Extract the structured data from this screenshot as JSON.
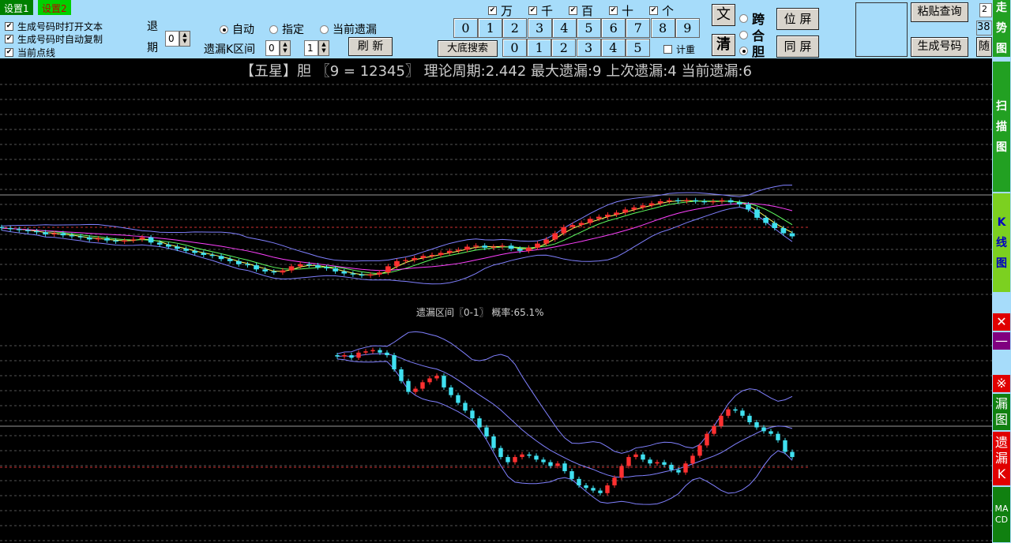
{
  "tabs": [
    {
      "label": "设置1",
      "bg": "#008000",
      "color": "#fff"
    },
    {
      "label": "设置2",
      "bg": "#00d000",
      "color": "#c00000"
    }
  ],
  "options": [
    "生成号码时打开文本",
    "生成号码时自动复制",
    "当前点线"
  ],
  "tuiqi": {
    "label1": "退",
    "label2": "期",
    "value": "0"
  },
  "modes": [
    {
      "label": "自动",
      "selected": true
    },
    {
      "label": "指定",
      "selected": false
    },
    {
      "label": "当前遗漏",
      "selected": false
    }
  ],
  "interval": {
    "label": "遗漏K区间",
    "from": "0",
    "to": "1"
  },
  "refresh_label": "刷 新",
  "positions": [
    "万",
    "千",
    "百",
    "十",
    "个"
  ],
  "digits": [
    "0",
    "1",
    "2",
    "3",
    "4",
    "5",
    "6",
    "7",
    "8",
    "9"
  ],
  "search_label": "大底搜索",
  "sums": [
    "0",
    "1",
    "2",
    "3",
    "4",
    "5"
  ],
  "jizhong_label": "计重",
  "wen_label": "文",
  "qing_label": "清",
  "kinds": [
    {
      "label": "跨",
      "selected": false
    },
    {
      "label": "合",
      "selected": false
    },
    {
      "label": "胆",
      "selected": true
    }
  ],
  "weiping_label": "位 屏",
  "tongping_label": "同 屏",
  "paste_label": "粘贴查询",
  "generate_label": "生成号码",
  "random_label": "随",
  "small_inputs": [
    "2",
    "38"
  ],
  "sidebar": [
    {
      "label": "走势图",
      "bg": "#22a022"
    },
    {
      "label": "扫描图",
      "bg": "#22a022"
    },
    {
      "label": "K线图",
      "bg": "#7cd020",
      "color": "#0000c0"
    },
    {
      "label": "✕",
      "bg": "#e00000"
    },
    {
      "label": "—",
      "bg": "#800080"
    },
    {
      "label": "※",
      "bg": "#e00000"
    },
    {
      "label": "漏图",
      "bg": "#108010"
    },
    {
      "label": "遗漏K",
      "bg": "#e00000"
    },
    {
      "label": "MACD",
      "bg": "#108010"
    }
  ],
  "title": "【五星】胆 〖9 = 12345〗 理论周期:2.442 最大遗漏:9 上次遗漏:4 当前遗漏:6",
  "subtitle": "遗漏区间〖0-1〗 概率:65.1%",
  "colors": {
    "up": "#ff3030",
    "down": "#40e0f0",
    "band": "#8080ff",
    "ma1": "#ffff60",
    "ma2": "#60ff60",
    "ma3": "#ff40ff"
  },
  "chart_data": [
    {
      "type": "candlestick",
      "name": "upper",
      "close": [
        130,
        128,
        126,
        124,
        122,
        118,
        120,
        116,
        114,
        112,
        108,
        110,
        106,
        104,
        106,
        108,
        112,
        102,
        98,
        94,
        90,
        86,
        82,
        78,
        76,
        70,
        66,
        60,
        58,
        50,
        46,
        44,
        48,
        56,
        60,
        58,
        54,
        52,
        46,
        42,
        40,
        38,
        40,
        44,
        56,
        66,
        68,
        72,
        76,
        78,
        82,
        86,
        88,
        94,
        96,
        92,
        94,
        96,
        90,
        86,
        92,
        100,
        108,
        120,
        132,
        136,
        140,
        148,
        152,
        156,
        160,
        166,
        170,
        174,
        178,
        182,
        184,
        182,
        184,
        182,
        180,
        182,
        184,
        180,
        176,
        166,
        150,
        140,
        130,
        120,
        114
      ],
      "ylim": [
        0,
        260
      ]
    },
    {
      "type": "candlestick",
      "name": "lower",
      "close": [
        260,
        262,
        258,
        266,
        268,
        270,
        266,
        262,
        240,
        222,
        205,
        210,
        220,
        226,
        230,
        212,
        200,
        188,
        176,
        164,
        150,
        136,
        118,
        104,
        96,
        104,
        108,
        106,
        100,
        96,
        90,
        94,
        82,
        70,
        60,
        56,
        52,
        48,
        60,
        72,
        90,
        104,
        108,
        100,
        94,
        96,
        92,
        84,
        80,
        94,
        106,
        122,
        140,
        152,
        168,
        178,
        176,
        168,
        158,
        150,
        144,
        140,
        130,
        112,
        104
      ],
      "ylim": [
        0,
        300
      ]
    }
  ]
}
